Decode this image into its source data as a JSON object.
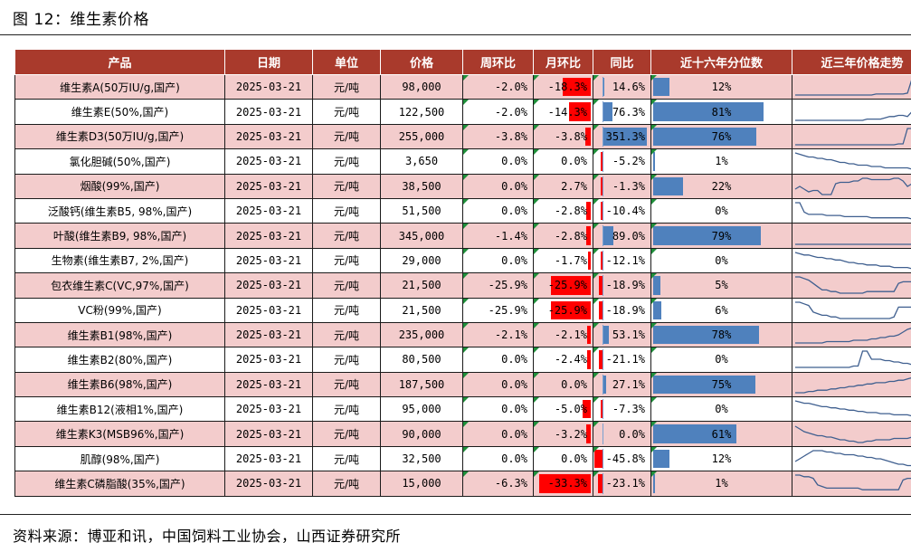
{
  "title": "图 12：维生素价格",
  "source": "资料来源：博亚和讯，中国饲料工业协会，山西证券研究所",
  "colors": {
    "header_bg": "#a93a2c",
    "alt_row": "#f3cccc",
    "neg_bar": "#ff0000",
    "pct_bar": "#4f81bd",
    "sparkline": "#3f5f8f"
  },
  "headers": [
    "产品",
    "日期",
    "单位",
    "价格",
    "周环比",
    "月环比",
    "同比",
    "近十六年分位数",
    "近三年价格走势"
  ],
  "rows": [
    {
      "product": "维生素A(50万IU/g,国产)",
      "date": "2025-03-21",
      "unit": "元/吨",
      "price": "98,000",
      "wow": "-2.0%",
      "mom": "-18.3%",
      "yoy": "14.6%",
      "pct": "12%",
      "mom_val": -18.3,
      "yoy_val": 14.6,
      "pct_val": 12,
      "trend": [
        3,
        3,
        3,
        3,
        3,
        3,
        3,
        3,
        3,
        3,
        3,
        3,
        3,
        3,
        3,
        3,
        3,
        3,
        4,
        4,
        4,
        4,
        4,
        4,
        4,
        5,
        20,
        18,
        10,
        8
      ]
    },
    {
      "product": "维生素E(50%,国产)",
      "date": "2025-03-21",
      "unit": "元/吨",
      "price": "122,500",
      "wow": "-2.0%",
      "mom": "-14.3%",
      "yoy": "76.3%",
      "pct": "81%",
      "mom_val": -14.3,
      "yoy_val": 76.3,
      "pct_val": 81,
      "trend": [
        5,
        5,
        5,
        5,
        5,
        5,
        5,
        5,
        5,
        5,
        5,
        5,
        5,
        5,
        5,
        5,
        6,
        6,
        6,
        6,
        7,
        8,
        8,
        9,
        9,
        8,
        12,
        16,
        18,
        15
      ]
    },
    {
      "product": "维生素D3(50万IU/g,国产)",
      "date": "2025-03-21",
      "unit": "元/吨",
      "price": "255,000",
      "wow": "-3.8%",
      "mom": "-3.8%",
      "yoy": "351.3%",
      "pct": "76%",
      "mom_val": -3.8,
      "yoy_val": 351.3,
      "pct_val": 76,
      "trend": [
        2,
        2,
        2,
        2,
        2,
        2,
        2,
        2,
        2,
        2,
        2,
        2,
        2,
        2,
        2,
        2,
        2,
        2,
        2,
        2,
        2,
        2,
        2,
        3,
        3,
        20,
        20,
        20,
        20,
        19
      ]
    },
    {
      "product": "氯化胆碱(50%,国产)",
      "date": "2025-03-21",
      "unit": "元/吨",
      "price": "3,650",
      "wow": "0.0%",
      "mom": "0.0%",
      "yoy": "-5.2%",
      "pct": "1%",
      "mom_val": 0,
      "yoy_val": -5.2,
      "pct_val": 1,
      "trend": [
        20,
        19,
        18,
        17,
        17,
        16,
        16,
        15,
        15,
        14,
        13,
        13,
        12,
        12,
        11,
        11,
        11,
        10,
        10,
        10,
        9,
        9,
        9,
        9,
        9,
        9,
        8,
        8,
        8,
        8
      ]
    },
    {
      "product": "烟酸(99%,国产)",
      "date": "2025-03-21",
      "unit": "元/吨",
      "price": "38,500",
      "wow": "0.0%",
      "mom": "2.7%",
      "yoy": "-1.3%",
      "pct": "22%",
      "mom_val": 2.7,
      "yoy_val": -1.3,
      "pct_val": 22,
      "trend": [
        10,
        12,
        10,
        8,
        9,
        9,
        6,
        6,
        6,
        14,
        15,
        15,
        15,
        16,
        16,
        18,
        18,
        17,
        17,
        17,
        17,
        17,
        18,
        18,
        16,
        12,
        14,
        14,
        15,
        16
      ]
    },
    {
      "product": "泛酸钙(维生素B5, 98%,国产)",
      "date": "2025-03-21",
      "unit": "元/吨",
      "price": "51,500",
      "wow": "0.0%",
      "mom": "-2.8%",
      "yoy": "-10.4%",
      "pct": "0%",
      "mom_val": -2.8,
      "yoy_val": -10.4,
      "pct_val": 0,
      "trend": [
        20,
        20,
        12,
        10,
        10,
        10,
        10,
        9,
        9,
        9,
        9,
        8,
        8,
        8,
        8,
        8,
        8,
        7,
        7,
        7,
        7,
        7,
        7,
        7,
        7,
        7,
        6,
        6,
        6,
        6
      ]
    },
    {
      "product": "叶酸(维生素B9, 98%,国产)",
      "date": "2025-03-21",
      "unit": "元/吨",
      "price": "345,000",
      "wow": "-1.4%",
      "mom": "-2.8%",
      "yoy": "89.0%",
      "pct": "79%",
      "mom_val": -2.8,
      "yoy_val": 89.0,
      "pct_val": 79,
      "trend": [
        4,
        4,
        4,
        4,
        4,
        4,
        4,
        4,
        4,
        4,
        4,
        4,
        4,
        4,
        4,
        4,
        4,
        4,
        4,
        4,
        4,
        4,
        4,
        4,
        4,
        4,
        4,
        5,
        18,
        18
      ]
    },
    {
      "product": "生物素(维生素B7, 2%,国产)",
      "date": "2025-03-21",
      "unit": "元/吨",
      "price": "29,000",
      "wow": "0.0%",
      "mom": "-1.7%",
      "yoy": "-12.1%",
      "pct": "0%",
      "mom_val": -1.7,
      "yoy_val": -12.1,
      "pct_val": 0,
      "trend": [
        20,
        19,
        18,
        18,
        17,
        16,
        16,
        15,
        15,
        14,
        14,
        13,
        12,
        12,
        11,
        11,
        10,
        10,
        10,
        9,
        9,
        9,
        8,
        8,
        8,
        8,
        7,
        7,
        7,
        7
      ]
    },
    {
      "product": "包衣维生素C(VC,97%,国产)",
      "date": "2025-03-21",
      "unit": "元/吨",
      "price": "21,500",
      "wow": "-25.9%",
      "mom": "-25.9%",
      "yoy": "-18.9%",
      "pct": "5%",
      "mom_val": -25.9,
      "yoy_val": -18.9,
      "pct_val": 5,
      "trend": [
        18,
        18,
        17,
        16,
        14,
        12,
        10,
        10,
        9,
        9,
        8,
        8,
        8,
        8,
        8,
        8,
        9,
        9,
        9,
        9,
        9,
        9,
        9,
        14,
        15,
        15,
        15,
        15,
        14,
        9
      ]
    },
    {
      "product": "VC粉(99%,国产)",
      "date": "2025-03-21",
      "unit": "元/吨",
      "price": "21,500",
      "wow": "-25.9%",
      "mom": "-25.9%",
      "yoy": "-18.9%",
      "pct": "6%",
      "mom_val": -25.9,
      "yoy_val": -18.9,
      "pct_val": 6,
      "trend": [
        18,
        18,
        17,
        16,
        12,
        11,
        10,
        10,
        9,
        9,
        8,
        8,
        8,
        8,
        8,
        8,
        8,
        8,
        8,
        8,
        8,
        8,
        9,
        15,
        15,
        15,
        15,
        15,
        14,
        9
      ]
    },
    {
      "product": "维生素B1(98%,国产)",
      "date": "2025-03-21",
      "unit": "元/吨",
      "price": "235,000",
      "wow": "-2.1%",
      "mom": "-2.1%",
      "yoy": "53.1%",
      "pct": "78%",
      "mom_val": -2.1,
      "yoy_val": 53.1,
      "pct_val": 78,
      "trend": [
        6,
        6,
        6,
        6,
        6,
        6,
        6,
        7,
        7,
        7,
        7,
        7,
        7,
        8,
        8,
        8,
        8,
        9,
        9,
        10,
        10,
        11,
        11,
        12,
        14,
        16,
        17,
        18,
        18,
        18
      ]
    },
    {
      "product": "维生素B2(80%,国产)",
      "date": "2025-03-21",
      "unit": "元/吨",
      "price": "80,500",
      "wow": "0.0%",
      "mom": "-2.4%",
      "yoy": "-21.1%",
      "pct": "0%",
      "mom_val": -2.4,
      "yoy_val": -21.1,
      "pct_val": 0,
      "trend": [
        6,
        6,
        6,
        6,
        6,
        6,
        6,
        6,
        6,
        6,
        6,
        6,
        6,
        7,
        7,
        18,
        18,
        12,
        12,
        12,
        11,
        11,
        10,
        10,
        9,
        9,
        8,
        8,
        8,
        8
      ]
    },
    {
      "product": "维生素B6(98%,国产)",
      "date": "2025-03-21",
      "unit": "元/吨",
      "price": "187,500",
      "wow": "0.0%",
      "mom": "0.0%",
      "yoy": "27.1%",
      "pct": "75%",
      "mom_val": 0,
      "yoy_val": 27.1,
      "pct_val": 75,
      "trend": [
        4,
        4,
        4,
        5,
        5,
        6,
        6,
        6,
        7,
        7,
        8,
        8,
        9,
        9,
        10,
        10,
        11,
        11,
        12,
        12,
        12,
        13,
        13,
        14,
        14,
        15,
        16,
        17,
        17,
        17
      ]
    },
    {
      "product": "维生素B12(液相1%,国产)",
      "date": "2025-03-21",
      "unit": "元/吨",
      "price": "95,000",
      "wow": "0.0%",
      "mom": "-5.0%",
      "yoy": "-7.3%",
      "pct": "0%",
      "mom_val": -5.0,
      "yoy_val": -7.3,
      "pct_val": 0,
      "trend": [
        20,
        19,
        18,
        18,
        17,
        16,
        15,
        15,
        14,
        14,
        13,
        13,
        12,
        12,
        11,
        11,
        10,
        10,
        10,
        9,
        9,
        9,
        8,
        8,
        8,
        8,
        7,
        7,
        6,
        6
      ]
    },
    {
      "product": "维生素K3(MSB96%,国产)",
      "date": "2025-03-21",
      "unit": "元/吨",
      "price": "90,000",
      "wow": "0.0%",
      "mom": "-3.2%",
      "yoy": "0.0%",
      "pct": "61%",
      "mom_val": -3.2,
      "yoy_val": 0,
      "pct_val": 61,
      "trend": [
        20,
        18,
        16,
        15,
        14,
        13,
        13,
        12,
        12,
        11,
        10,
        10,
        9,
        9,
        8,
        8,
        9,
        9,
        10,
        10,
        10,
        10,
        11,
        11,
        11,
        11,
        12,
        12,
        12,
        12
      ]
    },
    {
      "product": "肌醇(98%,国产)",
      "date": "2025-03-21",
      "unit": "元/吨",
      "price": "32,500",
      "wow": "0.0%",
      "mom": "0.0%",
      "yoy": "-45.8%",
      "pct": "12%",
      "mom_val": 0,
      "yoy_val": -45.8,
      "pct_val": 12,
      "trend": [
        10,
        12,
        14,
        16,
        18,
        18,
        18,
        17,
        17,
        16,
        16,
        15,
        15,
        15,
        14,
        14,
        13,
        13,
        12,
        12,
        11,
        10,
        9,
        8,
        8,
        7,
        7,
        6,
        6,
        6
      ]
    },
    {
      "product": "维生素C磷脂酸(35%,国产)",
      "date": "2025-03-21",
      "unit": "元/吨",
      "price": "15,000",
      "wow": "-6.3%",
      "mom": "-33.3%",
      "yoy": "-23.1%",
      "pct": "1%",
      "mom_val": -33.3,
      "yoy_val": -23.1,
      "pct_val": 1,
      "trend": [
        18,
        18,
        17,
        17,
        16,
        12,
        11,
        10,
        10,
        10,
        10,
        10,
        10,
        10,
        10,
        9,
        9,
        9,
        9,
        9,
        9,
        9,
        9,
        9,
        15,
        16,
        16,
        16,
        16,
        8
      ]
    }
  ]
}
